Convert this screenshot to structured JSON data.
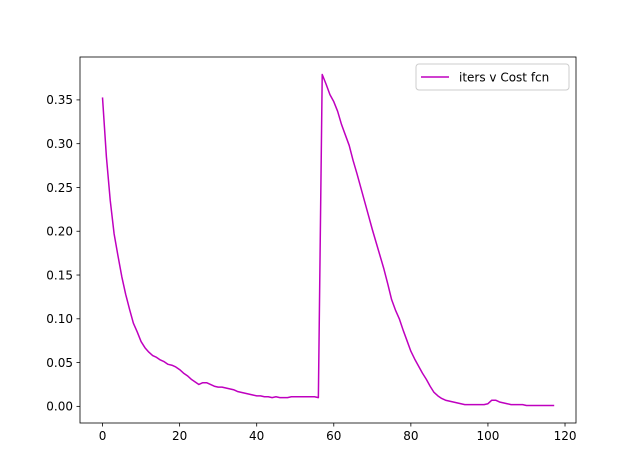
{
  "chart_data": {
    "type": "line",
    "title": "",
    "xlabel": "",
    "ylabel": "",
    "xlim": [
      -5.85,
      122.85
    ],
    "ylim": [
      -0.019,
      0.399
    ],
    "x_ticks": [
      0,
      20,
      40,
      60,
      80,
      100,
      120
    ],
    "y_ticks": [
      0.0,
      0.05,
      0.1,
      0.15,
      0.2,
      0.25,
      0.3,
      0.35
    ],
    "x_tick_labels": [
      "0",
      "20",
      "40",
      "60",
      "80",
      "100",
      "120"
    ],
    "y_tick_labels": [
      "0.00",
      "0.05",
      "0.10",
      "0.15",
      "0.20",
      "0.25",
      "0.30",
      "0.35"
    ],
    "grid": false,
    "legend_position": "top-right",
    "series": [
      {
        "name": "iters v Cost fcn",
        "color": "#bf00bf",
        "x": [
          0,
          1,
          2,
          3,
          4,
          5,
          6,
          7,
          8,
          9,
          10,
          11,
          12,
          13,
          14,
          15,
          16,
          17,
          18,
          19,
          20,
          21,
          22,
          23,
          24,
          25,
          26,
          27,
          28,
          29,
          30,
          31,
          32,
          33,
          34,
          35,
          36,
          37,
          38,
          39,
          40,
          41,
          42,
          43,
          44,
          45,
          46,
          47,
          48,
          49,
          50,
          51,
          52,
          53,
          54,
          55,
          56,
          57,
          58,
          59,
          60,
          61,
          62,
          63,
          64,
          65,
          66,
          67,
          68,
          69,
          70,
          71,
          72,
          73,
          74,
          75,
          76,
          77,
          78,
          79,
          80,
          81,
          82,
          83,
          84,
          85,
          86,
          87,
          88,
          89,
          90,
          91,
          92,
          93,
          94,
          95,
          96,
          97,
          98,
          99,
          100,
          101,
          102,
          103,
          104,
          105,
          106,
          107,
          108,
          109,
          110,
          111,
          112,
          113,
          114,
          115,
          116,
          117
        ],
        "y": [
          0.352,
          0.285,
          0.235,
          0.197,
          0.172,
          0.148,
          0.128,
          0.111,
          0.095,
          0.085,
          0.074,
          0.067,
          0.062,
          0.058,
          0.056,
          0.053,
          0.051,
          0.048,
          0.047,
          0.045,
          0.042,
          0.038,
          0.035,
          0.031,
          0.028,
          0.025,
          0.027,
          0.027,
          0.025,
          0.023,
          0.022,
          0.022,
          0.021,
          0.02,
          0.019,
          0.017,
          0.016,
          0.015,
          0.014,
          0.013,
          0.012,
          0.012,
          0.011,
          0.011,
          0.01,
          0.011,
          0.01,
          0.01,
          0.01,
          0.011,
          0.011,
          0.011,
          0.011,
          0.011,
          0.011,
          0.011,
          0.01,
          0.379,
          0.368,
          0.356,
          0.348,
          0.337,
          0.322,
          0.31,
          0.298,
          0.281,
          0.266,
          0.25,
          0.234,
          0.218,
          0.202,
          0.187,
          0.172,
          0.157,
          0.14,
          0.122,
          0.11,
          0.1,
          0.087,
          0.075,
          0.063,
          0.054,
          0.046,
          0.038,
          0.031,
          0.023,
          0.016,
          0.012,
          0.009,
          0.007,
          0.006,
          0.005,
          0.004,
          0.003,
          0.002,
          0.002,
          0.002,
          0.002,
          0.002,
          0.002,
          0.003,
          0.007,
          0.007,
          0.005,
          0.004,
          0.003,
          0.002,
          0.002,
          0.002,
          0.002,
          0.001,
          0.001,
          0.001,
          0.001,
          0.001,
          0.001,
          0.001,
          0.001
        ]
      }
    ]
  }
}
